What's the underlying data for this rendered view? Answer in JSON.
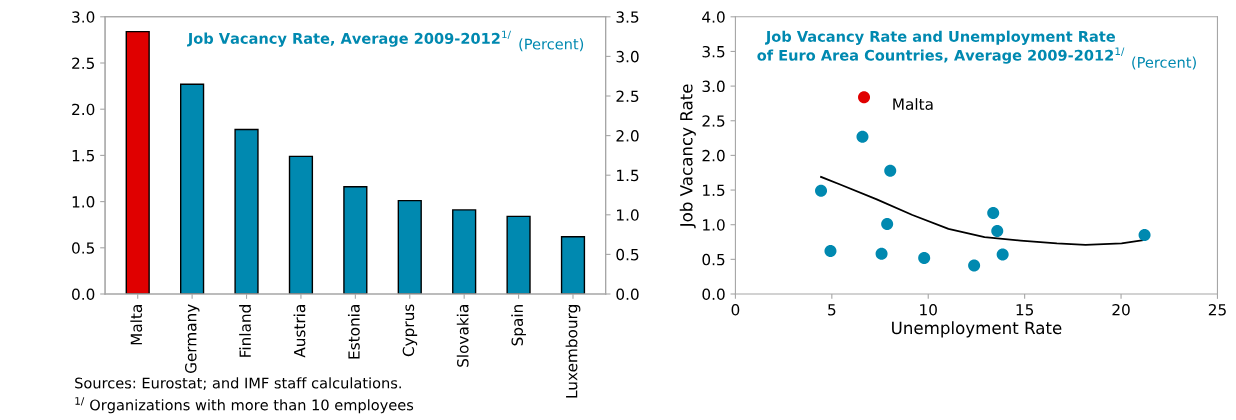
{
  "chart_data": [
    {
      "type": "bar",
      "title": "Job Vacancy Rate, Average 2009-2012$^{1/}$",
      "subtitle": "(Percent)",
      "categories": [
        "Malta",
        "Germany",
        "Finland",
        "Austria",
        "Estonia",
        "Cyprus",
        "Slovakia",
        "Spain",
        "Luxembourg"
      ],
      "values": [
        2.84,
        2.27,
        1.78,
        1.49,
        1.16,
        1.01,
        0.91,
        0.84,
        0.62
      ],
      "colors": [
        "#e00000",
        "#0089b0",
        "#0089b0",
        "#0089b0",
        "#0089b0",
        "#0089b0",
        "#0089b0",
        "#0089b0",
        "#0089b0"
      ],
      "ylim": [
        0,
        3
      ],
      "yticks": [
        {
          "value": 0,
          "label": "0.0"
        },
        {
          "value": 0.5,
          "label": "0.5"
        },
        {
          "value": 1,
          "label": "1.0"
        },
        {
          "value": 1.5,
          "label": "1.5"
        },
        {
          "value": 2,
          "label": "2.0"
        },
        {
          "value": 2.5,
          "label": "2.5"
        },
        {
          "value": 3,
          "label": "3.0"
        }
      ],
      "y2lim": [
        0,
        3.5
      ],
      "y2ticks": [
        {
          "value": 0,
          "label": "0.0"
        },
        {
          "value": 0.5,
          "label": "0.5"
        },
        {
          "value": 1,
          "label": "1.0"
        },
        {
          "value": 1.5,
          "label": "1.5"
        },
        {
          "value": 2,
          "label": "2.0"
        },
        {
          "value": 2.5,
          "label": "2.5"
        },
        {
          "value": 3,
          "label": "3.0"
        },
        {
          "value": 3.5,
          "label": "3.5"
        }
      ],
      "grid": false,
      "legend": false,
      "annotations": [
        "Sources: Eurostat; and IMF staff calculations.",
        "$^{1/}$ Organizations with more than 10 employees"
      ]
    },
    {
      "type": "scatter",
      "title": "Job Vacancy Rate and Unemployment Rate\nof Euro Area Countries, Average 2009-2012$^{1/}$",
      "subtitle": "(Percent)",
      "xlabel": "Unemployment Rate",
      "ylabel": "Job Vacancy Rate",
      "series": [
        {
          "type": "scatter",
          "marker": "circle",
          "x": [
            6.67,
            6.59,
            8.03,
            4.44,
            7.87,
            4.93,
            7.58,
            9.79,
            12.38,
            13.37,
            13.58,
            13.86,
            21.22
          ],
          "values": [
            2.84,
            2.27,
            1.78,
            1.49,
            1.01,
            0.62,
            0.58,
            0.52,
            0.41,
            1.17,
            0.91,
            0.57,
            0.85
          ],
          "colors": [
            "#e00000",
            "#0089b0",
            "#0089b0",
            "#0089b0",
            "#0089b0",
            "#0089b0",
            "#0089b0",
            "#0089b0",
            "#0089b0",
            "#0089b0",
            "#0089b0",
            "#0089b0",
            "#0089b0"
          ]
        },
        {
          "type": "line",
          "color": "#000000",
          "x": [
            4.44,
            5.43,
            7.3,
            9.18,
            11.05,
            12.92,
            14.79,
            16.67,
            18.16,
            20.03,
            21.2
          ],
          "values": [
            1.69,
            1.58,
            1.37,
            1.14,
            0.94,
            0.82,
            0.77,
            0.73,
            0.71,
            0.73,
            0.78
          ]
        }
      ],
      "xlim": [
        0,
        25
      ],
      "xticks": [
        0,
        5,
        10,
        15,
        20,
        25
      ],
      "ylim": [
        0,
        4
      ],
      "yticks": [
        {
          "value": 0,
          "label": "0.0"
        },
        {
          "value": 0.5,
          "label": "0.5"
        },
        {
          "value": 1,
          "label": "1.0"
        },
        {
          "value": 1.5,
          "label": "1.5"
        },
        {
          "value": 2,
          "label": "2.0"
        },
        {
          "value": 2.5,
          "label": "2.5"
        },
        {
          "value": 3,
          "label": "3.0"
        },
        {
          "value": 3.5,
          "label": "3.5"
        },
        {
          "value": 4,
          "label": "4.0"
        }
      ],
      "grid": false,
      "legend": false,
      "annotations": [
        {
          "text": "Malta",
          "x": 6.67,
          "y": 2.84
        }
      ]
    }
  ]
}
